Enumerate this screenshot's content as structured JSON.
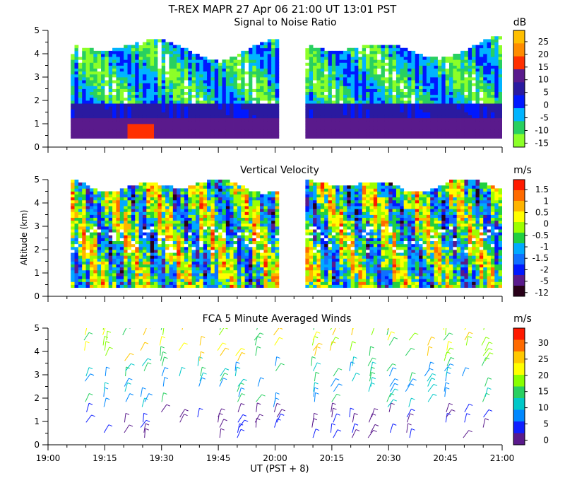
{
  "header": {
    "line1": "T-REX  MAPR 27 Apr 06  21:00 UT  13:01  PST"
  },
  "chart_data": [
    {
      "type": "heatmap",
      "title": "Signal to Noise Ratio",
      "unit": "dB",
      "ylabel": "",
      "ylim": [
        0,
        5
      ],
      "yticks": [
        "0",
        "1",
        "2",
        "3",
        "4",
        "5"
      ],
      "colorbar": {
        "ticks": [
          "25",
          "20",
          "15",
          "10",
          "5",
          "0",
          "-5",
          "-10",
          "-15"
        ],
        "colors": [
          "#ffbf00",
          "#ff8c00",
          "#ff3000",
          "#5a1a8c",
          "#2a1aa0",
          "#0018ff",
          "#00b4ff",
          "#28d060",
          "#8cff28"
        ]
      },
      "data_gaps_ut": [
        [
          "19:00",
          "19:06"
        ],
        "20:00",
        "20:08"
      ]
    },
    {
      "type": "heatmap",
      "title": "Vertical Velocity",
      "unit": "m/s",
      "ylabel": "Altitude (km)",
      "ylim": [
        0,
        5
      ],
      "yticks": [
        "0",
        "1",
        "2",
        "3",
        "4",
        "5"
      ],
      "colorbar": {
        "ticks": [
          "1.5",
          "1",
          "0.5",
          "0",
          "-0.5",
          "-1",
          "-1.5",
          "-2",
          "-5",
          "-12"
        ],
        "colors": [
          "#ff1a00",
          "#ff6a00",
          "#ffb400",
          "#ffff00",
          "#9cff00",
          "#20d040",
          "#00aaff",
          "#1070ff",
          "#0018ff",
          "#5a1a8c",
          "#280018"
        ]
      }
    },
    {
      "type": "scatter",
      "title": "FCA 5 Minute Averaged Winds",
      "unit": "m/s",
      "ylabel": "",
      "ylim": [
        0,
        5
      ],
      "yticks": [
        "0",
        "1",
        "2",
        "3",
        "4",
        "5"
      ],
      "colorbar": {
        "ticks": [
          "30",
          "25",
          "20",
          "15",
          "10",
          "5",
          "0"
        ],
        "colors": [
          "#ff1a00",
          "#ff6a00",
          "#ffc800",
          "#ffff00",
          "#88ff00",
          "#28d060",
          "#00c8c8",
          "#0088ff",
          "#1020ff",
          "#5a1a8c"
        ]
      },
      "xlabel": "UT  (PST + 8)",
      "xticks": [
        "19:00",
        "19:15",
        "19:30",
        "19:45",
        "20:00",
        "20:15",
        "20:30",
        "20:45",
        "21:00"
      ],
      "xlim_ut": [
        "19:00",
        "21:00"
      ]
    }
  ]
}
